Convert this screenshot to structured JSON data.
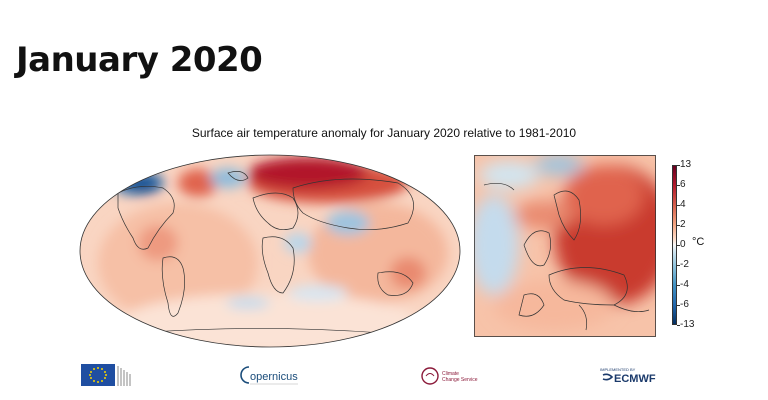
{
  "page": {
    "title": "January 2020"
  },
  "figure": {
    "title": "Surface air temperature anomaly for January 2020 relative to 1981-2010",
    "colorbar": {
      "unit": "°C",
      "ticks": [
        "13",
        "6",
        "4",
        "2",
        "0",
        "-2",
        "-4",
        "-6",
        "-13"
      ]
    }
  },
  "logos": {
    "eu": "European Commission",
    "copernicus": "Copernicus",
    "copernicus_word": "opernicus",
    "c3s": "Climate Change Service",
    "ecmwf": "ECMWF",
    "ecmwf_caption": "IMPLEMENTED BY"
  },
  "colors": {
    "warm_strong": "#b2182b",
    "warm": "#e7816a",
    "warm_light": "#f7c7b0",
    "cold": "#2c6eb0",
    "cold_light": "#c4dbed",
    "eu_blue": "#1f4ea1",
    "c3s_red": "#8b1a3a",
    "ecmwf_blue": "#1b3a6b"
  }
}
